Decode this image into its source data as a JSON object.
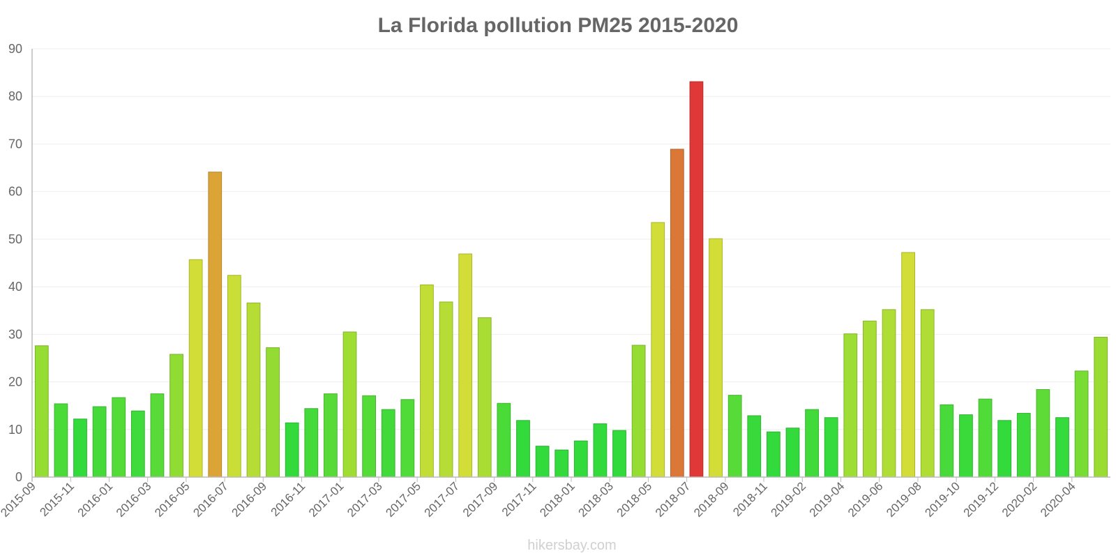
{
  "chart_data": {
    "type": "bar",
    "title": "La Florida pollution PM25 2015-2020",
    "xlabel": "",
    "ylabel": "",
    "ylim": [
      0,
      90
    ],
    "yticks": [
      0,
      10,
      20,
      30,
      40,
      50,
      60,
      70,
      80,
      90
    ],
    "grid": true,
    "categories": [
      "2015-09",
      "2015-10",
      "2015-11",
      "2015-12",
      "2016-01",
      "2016-02",
      "2016-03",
      "2016-04",
      "2016-05",
      "2016-06",
      "2016-07",
      "2016-08",
      "2016-09",
      "2016-10",
      "2016-11",
      "2016-12",
      "2017-01",
      "2017-02",
      "2017-03",
      "2017-04",
      "2017-05",
      "2017-06",
      "2017-07",
      "2017-08",
      "2017-09",
      "2017-10",
      "2017-11",
      "2017-12",
      "2018-01",
      "2018-02",
      "2018-03",
      "2018-04",
      "2018-05",
      "2018-06",
      "2018-07",
      "2018-08",
      "2018-09",
      "2018-10",
      "2018-11",
      "2018-12",
      "2019-02",
      "2019-03",
      "2019-04",
      "2019-05",
      "2019-06",
      "2019-07",
      "2019-08",
      "2019-09",
      "2019-10",
      "2019-11",
      "2019-12",
      "2020-01",
      "2020-02",
      "2020-03",
      "2020-04",
      "2020-05"
    ],
    "tick_labels": [
      "2015-09",
      "2015-11",
      "2016-01",
      "2016-03",
      "2016-05",
      "2016-07",
      "2016-09",
      "2016-11",
      "2017-01",
      "2017-03",
      "2017-05",
      "2017-07",
      "2017-09",
      "2017-11",
      "2018-01",
      "2018-03",
      "2018-05",
      "2018-07",
      "2018-09",
      "2018-11",
      "2019-02",
      "2019-04",
      "2019-06",
      "2019-08",
      "2019-10",
      "2019-12",
      "2020-02",
      "2020-04"
    ],
    "values": [
      27.6,
      15.4,
      12.2,
      14.8,
      16.7,
      13.9,
      17.5,
      25.8,
      45.7,
      64.1,
      42.4,
      36.6,
      27.2,
      11.4,
      14.4,
      17.5,
      30.5,
      17.1,
      14.2,
      16.3,
      40.4,
      36.8,
      46.9,
      33.5,
      15.5,
      11.9,
      6.5,
      5.7,
      7.6,
      11.2,
      9.8,
      27.7,
      53.5,
      68.9,
      83.1,
      50.1,
      17.2,
      12.9,
      9.5,
      10.3,
      14.2,
      12.5,
      30.1,
      32.8,
      35.2,
      47.2,
      35.2,
      15.2,
      13.1,
      16.4,
      11.9,
      13.4,
      18.4,
      12.5,
      22.3,
      29.4
    ]
  },
  "watermark": "hikersbay.com"
}
